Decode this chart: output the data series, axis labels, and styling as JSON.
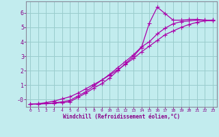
{
  "xlabel": "Windchill (Refroidissement éolien,°C)",
  "bg_color": "#c2ecee",
  "line_color": "#aa00aa",
  "grid_color": "#99cccc",
  "axis_color": "#888899",
  "text_color": "#880088",
  "xlim": [
    -0.5,
    23.5
  ],
  "ylim": [
    -0.5,
    6.8
  ],
  "xticks": [
    0,
    1,
    2,
    3,
    4,
    5,
    6,
    7,
    8,
    9,
    10,
    11,
    12,
    13,
    14,
    15,
    16,
    17,
    18,
    19,
    20,
    21,
    22,
    23
  ],
  "yticks": [
    0,
    1,
    2,
    3,
    4,
    5,
    6
  ],
  "ytick_labels": [
    "-0",
    "1",
    "2",
    "3",
    "4",
    "5",
    "6"
  ],
  "line1_x": [
    0,
    1,
    2,
    3,
    4,
    5,
    6,
    7,
    8,
    9,
    10,
    11,
    12,
    13,
    14,
    15,
    16,
    17,
    18,
    19,
    20,
    21,
    22,
    23
  ],
  "line1_y": [
    -0.3,
    -0.3,
    -0.28,
    -0.25,
    -0.2,
    -0.15,
    0.15,
    0.45,
    0.8,
    1.1,
    1.5,
    2.0,
    2.5,
    3.0,
    3.6,
    5.3,
    6.4,
    5.95,
    5.5,
    5.5,
    5.55,
    5.55,
    5.5,
    5.45
  ],
  "line2_x": [
    0,
    1,
    2,
    3,
    4,
    5,
    6,
    7,
    8,
    9,
    10,
    11,
    12,
    13,
    14,
    15,
    16,
    17,
    18,
    19,
    20,
    21,
    22,
    23
  ],
  "line2_y": [
    -0.3,
    -0.3,
    -0.28,
    -0.22,
    -0.15,
    -0.05,
    0.25,
    0.55,
    0.95,
    1.35,
    1.75,
    2.2,
    2.65,
    3.1,
    3.65,
    4.0,
    4.55,
    4.95,
    5.25,
    5.4,
    5.45,
    5.5,
    5.5,
    5.5
  ],
  "line3_x": [
    0,
    1,
    2,
    3,
    4,
    5,
    6,
    7,
    8,
    9,
    10,
    11,
    12,
    13,
    14,
    15,
    16,
    17,
    18,
    19,
    20,
    21,
    22,
    23
  ],
  "line3_y": [
    -0.3,
    -0.28,
    -0.2,
    -0.1,
    0.05,
    0.2,
    0.45,
    0.75,
    1.05,
    1.35,
    1.7,
    2.05,
    2.45,
    2.85,
    3.3,
    3.7,
    4.1,
    4.5,
    4.75,
    5.0,
    5.2,
    5.35,
    5.45,
    5.5
  ]
}
